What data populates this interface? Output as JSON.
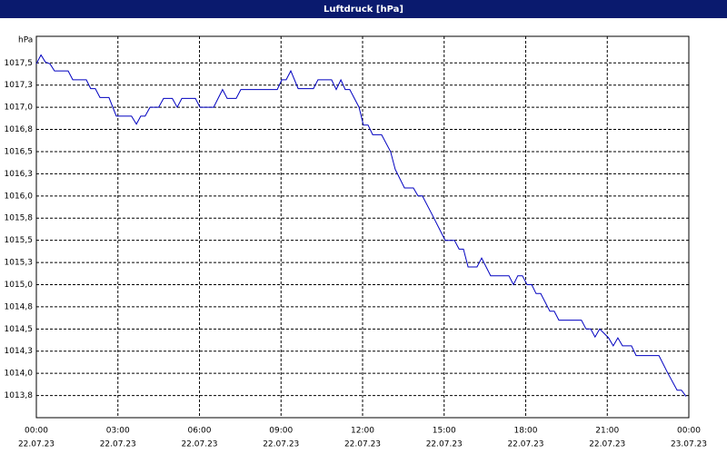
{
  "chart_data": {
    "type": "line",
    "title": "Luftdruck [hPa]",
    "y_label": "hPa",
    "x": [
      0,
      0.17,
      0.33,
      0.5,
      0.67,
      1.17,
      1.34,
      1.84,
      2.0,
      2.17,
      2.34,
      2.67,
      2.94,
      3.5,
      3.68,
      3.84,
      4.0,
      4.18,
      4.5,
      4.68,
      5.0,
      5.18,
      5.35,
      5.85,
      6.02,
      6.52,
      6.85,
      7.02,
      7.35,
      7.52,
      8.86,
      9.03,
      9.19,
      9.36,
      9.63,
      10.19,
      10.36,
      10.86,
      11.03,
      11.2,
      11.36,
      11.53,
      11.87,
      12.03,
      12.2,
      12.37,
      12.7,
      13.03,
      13.2,
      13.54,
      13.87,
      14.04,
      14.2,
      14.54,
      15.04,
      15.38,
      15.55,
      15.71,
      15.88,
      16.21,
      16.38,
      16.71,
      17.38,
      17.55,
      17.71,
      17.88,
      18.05,
      18.22,
      18.38,
      18.55,
      18.89,
      19.05,
      19.22,
      20.05,
      20.22,
      20.39,
      20.55,
      20.72,
      21.05,
      21.22,
      21.39,
      21.56,
      21.89,
      22.06,
      22.9,
      23.23,
      23.57,
      23.73,
      23.9
    ],
    "series": [
      {
        "name": "Luftdruck",
        "color": "#0000c0",
        "values": [
          1017.49,
          1017.59,
          1017.51,
          1017.49,
          1017.41,
          1017.41,
          1017.31,
          1017.31,
          1017.21,
          1017.21,
          1017.11,
          1017.11,
          1016.9,
          1016.9,
          1016.81,
          1016.9,
          1016.9,
          1017.0,
          1017.0,
          1017.1,
          1017.1,
          1017.0,
          1017.1,
          1017.1,
          1017.0,
          1017.0,
          1017.2,
          1017.1,
          1017.1,
          1017.2,
          1017.2,
          1017.31,
          1017.31,
          1017.41,
          1017.21,
          1017.21,
          1017.31,
          1017.31,
          1017.2,
          1017.31,
          1017.2,
          1017.2,
          1017.0,
          1016.8,
          1016.8,
          1016.69,
          1016.69,
          1016.5,
          1016.3,
          1016.09,
          1016.09,
          1016.0,
          1016.0,
          1015.8,
          1015.5,
          1015.5,
          1015.4,
          1015.4,
          1015.2,
          1015.2,
          1015.3,
          1015.1,
          1015.1,
          1015.0,
          1015.1,
          1015.1,
          1015.0,
          1015.0,
          1014.9,
          1014.9,
          1014.7,
          1014.7,
          1014.6,
          1014.6,
          1014.5,
          1014.5,
          1014.41,
          1014.5,
          1014.4,
          1014.31,
          1014.4,
          1014.31,
          1014.31,
          1014.2,
          1014.2,
          1014.0,
          1013.81,
          1013.81,
          1013.74
        ]
      }
    ],
    "xlim": [
      0,
      24
    ],
    "ylim": [
      1013.5,
      1017.8
    ],
    "xticks": [
      {
        "value": 0,
        "label": "00:00"
      },
      {
        "value": 3,
        "label": "03:00"
      },
      {
        "value": 6,
        "label": "06:00"
      },
      {
        "value": 9,
        "label": "09:00"
      },
      {
        "value": 12,
        "label": "12:00"
      },
      {
        "value": 15,
        "label": "15:00"
      },
      {
        "value": 18,
        "label": "18:00"
      },
      {
        "value": 21,
        "label": "21:00"
      },
      {
        "value": 24,
        "label": "00:00"
      }
    ],
    "xtick_dates": [
      "22.07.23",
      "22.07.23",
      "22.07.23",
      "22.07.23",
      "22.07.23",
      "22.07.23",
      "22.07.23",
      "22.07.23",
      "23.07.23"
    ],
    "yticks": [
      {
        "value": 1013.75,
        "label": "1013,8"
      },
      {
        "value": 1014.0,
        "label": "1014,0"
      },
      {
        "value": 1014.25,
        "label": "1014,3"
      },
      {
        "value": 1014.5,
        "label": "1014,5"
      },
      {
        "value": 1014.75,
        "label": "1014,8"
      },
      {
        "value": 1015.0,
        "label": "1015,0"
      },
      {
        "value": 1015.25,
        "label": "1015,3"
      },
      {
        "value": 1015.5,
        "label": "1015,5"
      },
      {
        "value": 1015.75,
        "label": "1015,8"
      },
      {
        "value": 1016.0,
        "label": "1016,0"
      },
      {
        "value": 1016.25,
        "label": "1016,3"
      },
      {
        "value": 1016.5,
        "label": "1016,5"
      },
      {
        "value": 1016.75,
        "label": "1016,8"
      },
      {
        "value": 1017.0,
        "label": "1017,0"
      },
      {
        "value": 1017.25,
        "label": "1017,3"
      },
      {
        "value": 1017.5,
        "label": "1017,5"
      }
    ],
    "grid": true
  }
}
